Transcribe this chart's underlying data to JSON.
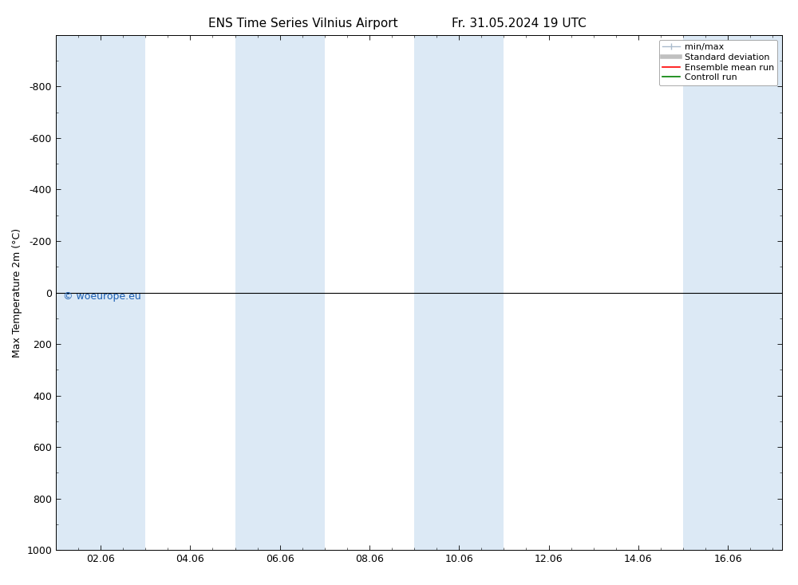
{
  "title_left": "ENS Time Series Vilnius Airport",
  "title_right": "Fr. 31.05.2024 19 UTC",
  "ylabel": "Max Temperature 2m (°C)",
  "ylim_top": -1000,
  "ylim_bottom": 1000,
  "yticks": [
    -800,
    -600,
    -400,
    -200,
    0,
    200,
    400,
    600,
    800,
    1000
  ],
  "xlim": [
    0.0,
    16.21
  ],
  "xtick_labels": [
    "02.06",
    "04.06",
    "06.06",
    "08.06",
    "10.06",
    "12.06",
    "14.06",
    "16.06"
  ],
  "xtick_positions": [
    1.0,
    3.0,
    5.0,
    7.0,
    9.0,
    11.0,
    13.0,
    15.0
  ],
  "shaded_bands": [
    [
      0.0,
      2.0
    ],
    [
      4.0,
      6.0
    ],
    [
      8.0,
      10.0
    ],
    [
      14.0,
      16.21
    ]
  ],
  "band_color": "#dce9f5",
  "background_color": "#ffffff",
  "plot_bg_color": "#ffffff",
  "zero_line_color": "#000000",
  "legend_items": [
    {
      "label": "min/max",
      "color": "#c8d8e8",
      "type": "band"
    },
    {
      "label": "Standard deviation",
      "color": "#d0d0d0",
      "type": "band"
    },
    {
      "label": "Ensemble mean run",
      "color": "#ff0000",
      "type": "line"
    },
    {
      "label": "Controll run",
      "color": "#008000",
      "type": "line"
    }
  ],
  "copyright_text": "© woeurope.eu",
  "copyright_color": "#1a5fb4",
  "title_fontsize": 11,
  "tick_fontsize": 9,
  "ylabel_fontsize": 9,
  "legend_fontsize": 8
}
